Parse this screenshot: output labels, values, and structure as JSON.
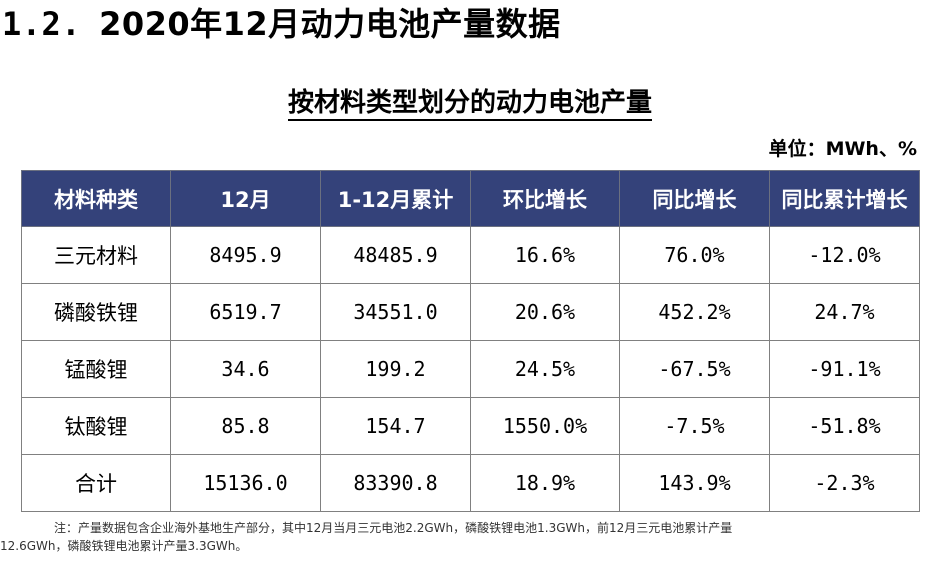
{
  "heading": {
    "number": "1.2.",
    "title": "2020年12月动力电池产量数据"
  },
  "table_title": "按材料类型划分的动力电池产量",
  "unit": "单位：MWh、%",
  "table": {
    "headers": [
      "材料种类",
      "12月",
      "1-12月累计",
      "环比增长",
      "同比增长",
      "同比累计增长"
    ],
    "rows": [
      [
        "三元材料",
        "8495.9",
        "48485.9",
        "16.6%",
        "76.0%",
        "-12.0%"
      ],
      [
        "磷酸铁锂",
        "6519.7",
        "34551.0",
        "20.6%",
        "452.2%",
        "24.7%"
      ],
      [
        "锰酸锂",
        "34.6",
        "199.2",
        "24.5%",
        "-67.5%",
        "-91.1%"
      ],
      [
        "钛酸锂",
        "85.8",
        "154.7",
        "1550.0%",
        "-7.5%",
        "-51.8%"
      ],
      [
        "合计",
        "15136.0",
        "83390.8",
        "18.9%",
        "143.9%",
        "-2.3%"
      ]
    ]
  },
  "note": {
    "line1": "注：产量数据包含企业海外基地生产部分，其中12月当月三元电池2.2GWh，磷酸铁锂电池1.3GWh，前12月三元电池累计产量",
    "line2": "12.6GWh，磷酸铁锂电池累计产量3.3GWh。"
  },
  "colors": {
    "header_bg": "#34427a",
    "header_text": "#ffffff"
  }
}
